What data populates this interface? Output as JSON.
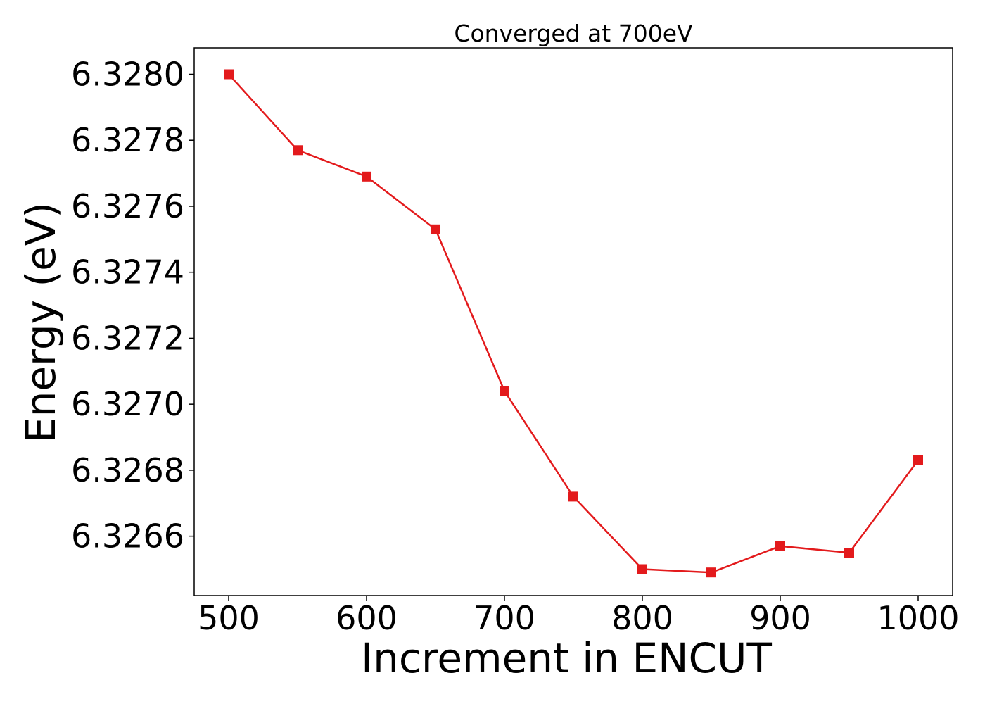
{
  "chart_data": {
    "type": "line",
    "title": "Converged at 700eV",
    "xlabel": "Increment in ENCUT",
    "ylabel": "Energy (eV)",
    "x": [
      500,
      550,
      600,
      650,
      700,
      750,
      800,
      850,
      900,
      950,
      1000
    ],
    "series": [
      {
        "values": [
          6.328,
          6.32777,
          6.32769,
          6.32753,
          6.32704,
          6.32672,
          6.3265,
          6.32649,
          6.32657,
          6.32655,
          6.32683
        ],
        "color": "#e31a1c",
        "marker": "square"
      }
    ],
    "xlim": [
      475,
      1025
    ],
    "ylim": [
      6.32642,
      6.32808
    ],
    "xticks": [
      500,
      600,
      700,
      800,
      900,
      1000
    ],
    "xtick_labels": [
      "500",
      "600",
      "700",
      "800",
      "900",
      "1000"
    ],
    "yticks": [
      6.3266,
      6.3268,
      6.327,
      6.3272,
      6.3274,
      6.3276,
      6.3278,
      6.328
    ],
    "ytick_labels": [
      "6.3266",
      "6.3268",
      "6.3270",
      "6.3272",
      "6.3274",
      "6.3276",
      "6.3278",
      "6.3280"
    ],
    "grid": false,
    "legend": false
  }
}
